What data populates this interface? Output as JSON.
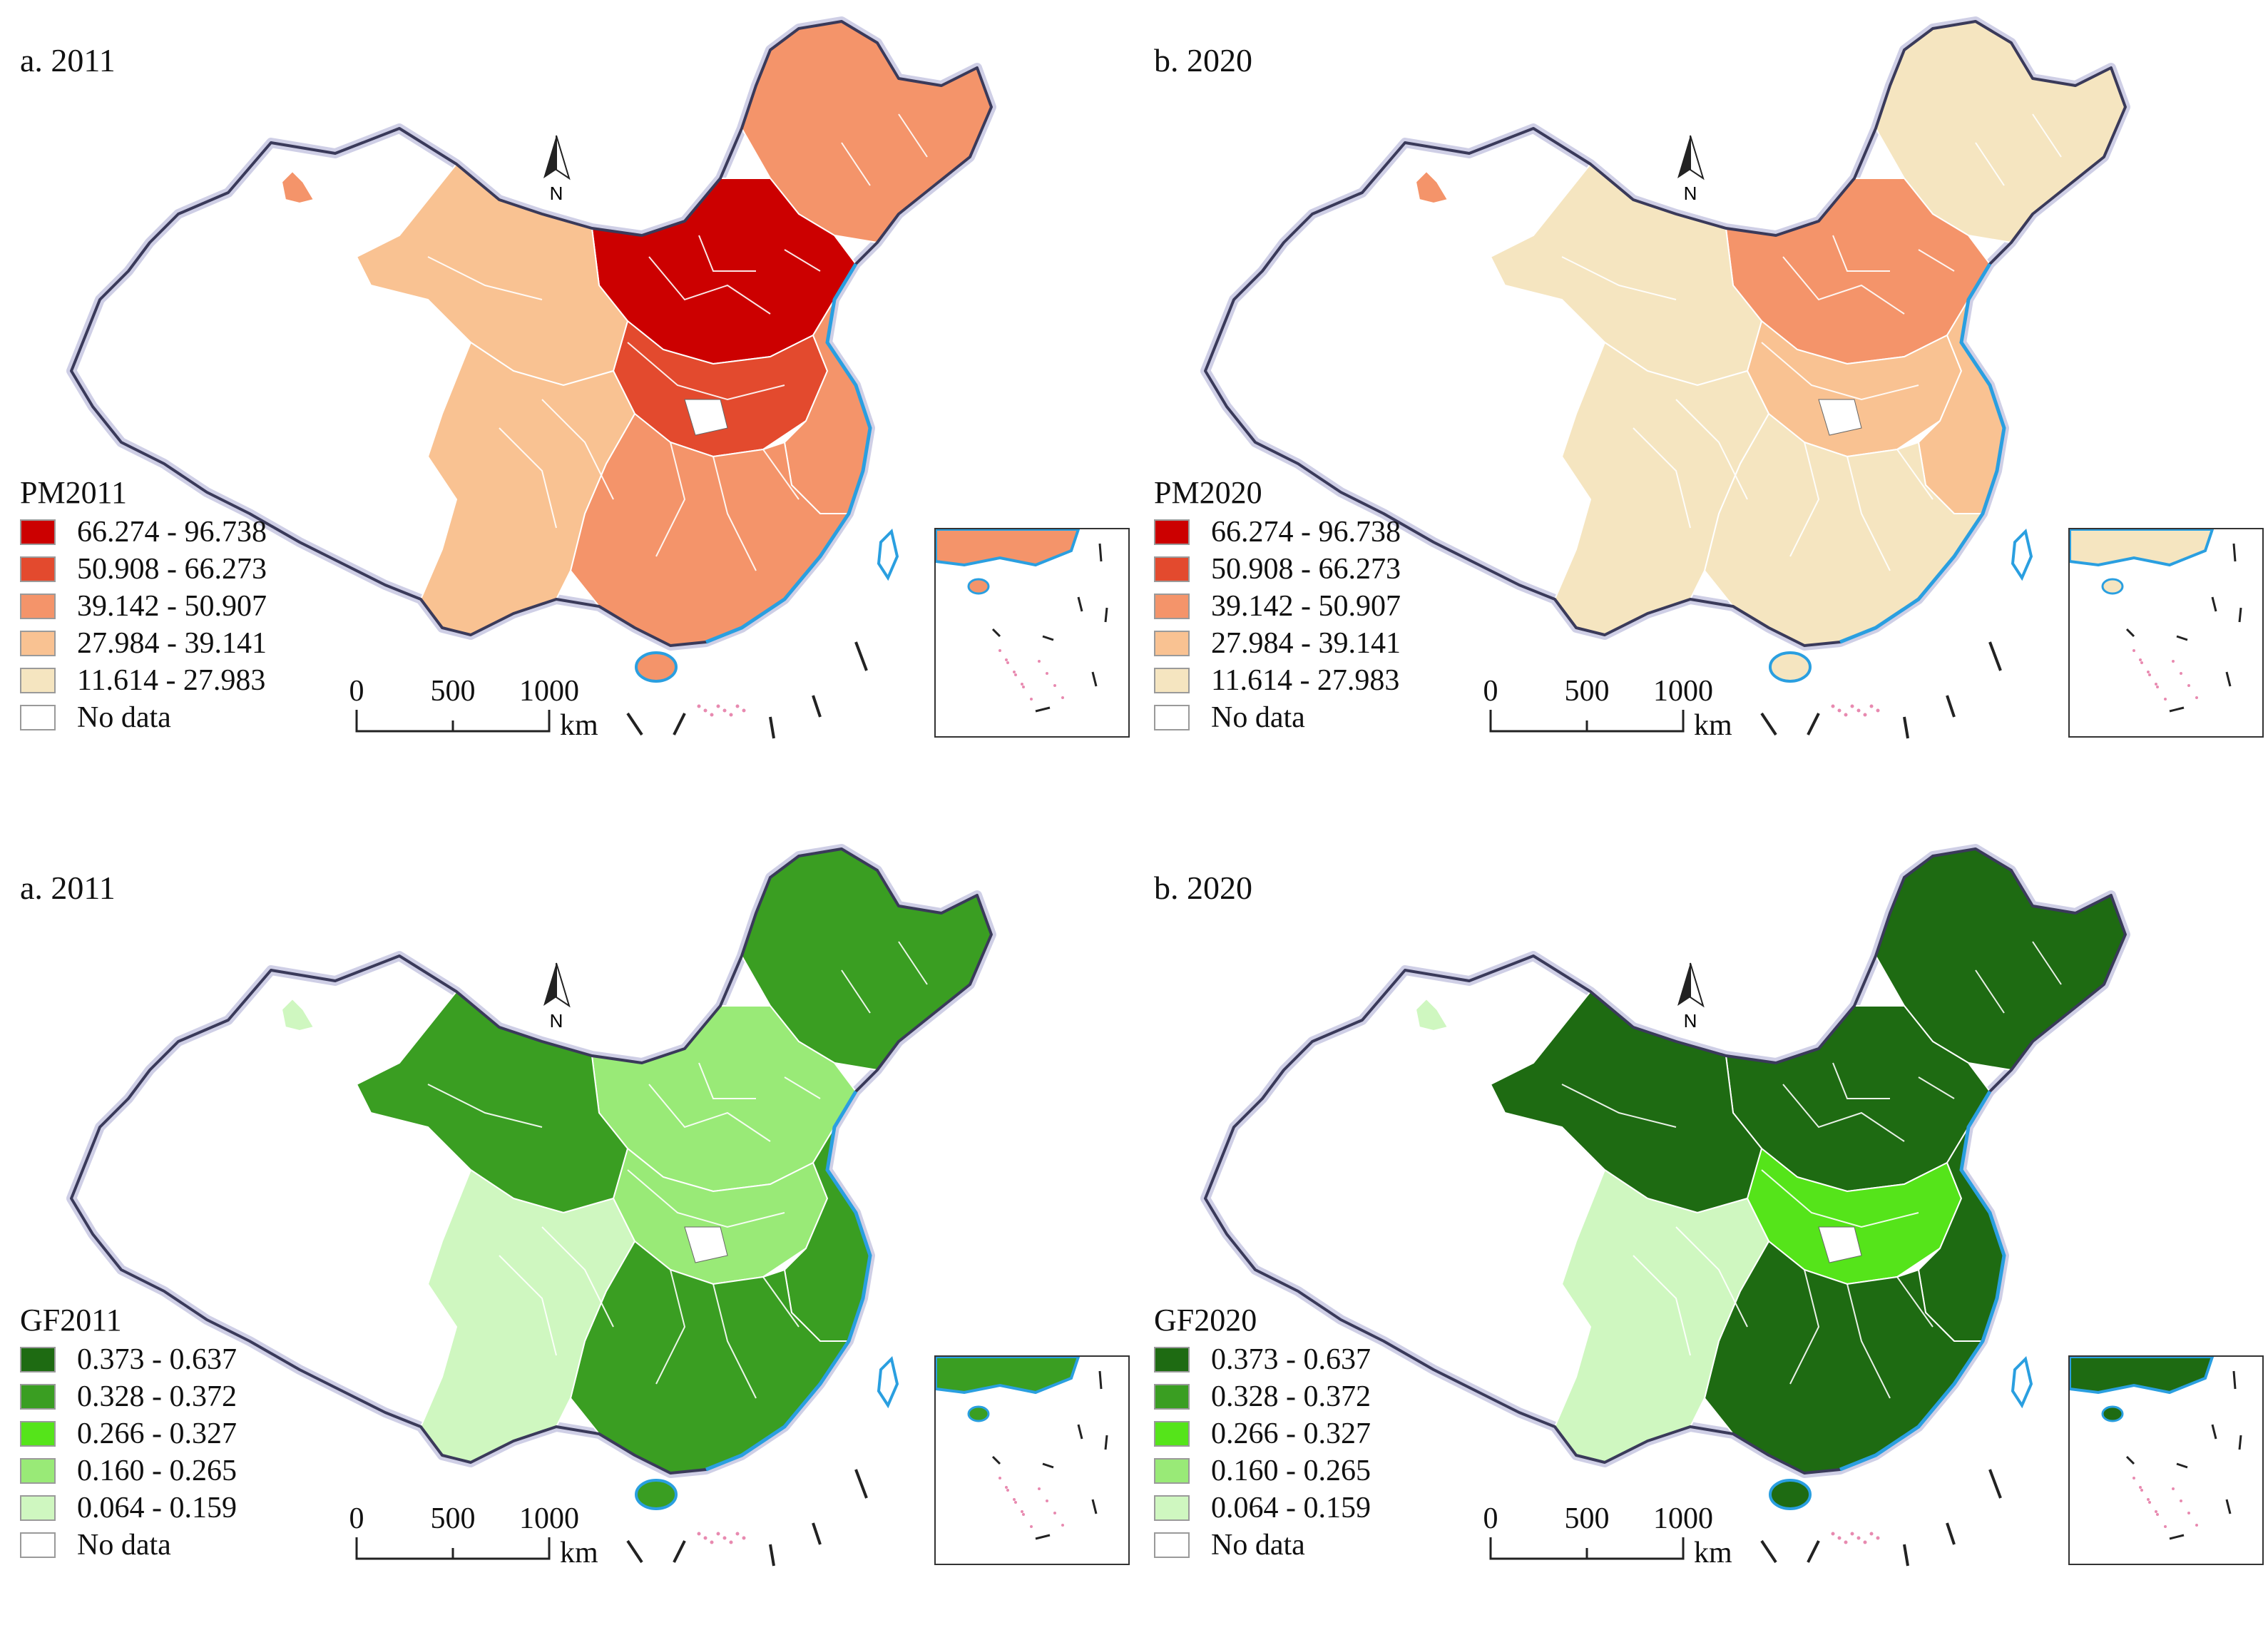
{
  "panels": [
    {
      "title": "a. 2011",
      "legend": {
        "title": "PM2011",
        "items": [
          {
            "label": "66.274 - 96.738",
            "color": "#cc0000"
          },
          {
            "label": "50.908 - 66.273",
            "color": "#e34a2e"
          },
          {
            "label": "39.142 - 50.907",
            "color": "#f4946a"
          },
          {
            "label": "27.984 - 39.141",
            "color": "#f9c292"
          },
          {
            "label": "11.614 - 27.983",
            "color": "#f5e5c0"
          },
          {
            "label": "No data",
            "color": "#ffffff"
          }
        ]
      },
      "scale": {
        "ticks": [
          "0",
          "500",
          "1000"
        ],
        "unit": "km"
      },
      "north": "N",
      "fill_by_region": {
        "northeast": 2,
        "north": 0,
        "central": 1,
        "west": 3,
        "south": 2,
        "southwest": 3,
        "east": 2,
        "xinjiang_spot": 2
      }
    },
    {
      "title": "b. 2020",
      "legend": {
        "title": "PM2020",
        "items": [
          {
            "label": "66.274 - 96.738",
            "color": "#cc0000"
          },
          {
            "label": "50.908 - 66.273",
            "color": "#e34a2e"
          },
          {
            "label": "39.142 - 50.907",
            "color": "#f4946a"
          },
          {
            "label": "27.984 - 39.141",
            "color": "#f9c292"
          },
          {
            "label": "11.614 - 27.983",
            "color": "#f5e5c0"
          },
          {
            "label": "No data",
            "color": "#ffffff"
          }
        ]
      },
      "scale": {
        "ticks": [
          "0",
          "500",
          "1000"
        ],
        "unit": "km"
      },
      "north": "N",
      "fill_by_region": {
        "northeast": 4,
        "north": 2,
        "central": 3,
        "west": 4,
        "south": 4,
        "southwest": 4,
        "east": 3,
        "xinjiang_spot": 2
      }
    },
    {
      "title": "a. 2011",
      "legend": {
        "title": "GF2011",
        "items": [
          {
            "label": "0.373 - 0.637",
            "color": "#1e6b12"
          },
          {
            "label": "0.328 - 0.372",
            "color": "#3a9e22"
          },
          {
            "label": "0.266 - 0.327",
            "color": "#55e41a"
          },
          {
            "label": "0.160 - 0.265",
            "color": "#99ea77"
          },
          {
            "label": "0.064 - 0.159",
            "color": "#cff7c0"
          },
          {
            "label": "No data",
            "color": "#ffffff"
          }
        ]
      },
      "scale": {
        "ticks": [
          "0",
          "500",
          "1000"
        ],
        "unit": "km"
      },
      "north": "N",
      "fill_by_region": {
        "northeast": 1,
        "north": 3,
        "central": 3,
        "west": 1,
        "south": 1,
        "southwest": 4,
        "east": 1,
        "xinjiang_spot": 4
      }
    },
    {
      "title": "b. 2020",
      "legend": {
        "title": "GF2020",
        "items": [
          {
            "label": "0.373 - 0.637",
            "color": "#1e6b12"
          },
          {
            "label": "0.328 - 0.372",
            "color": "#3a9e22"
          },
          {
            "label": "0.266 - 0.327",
            "color": "#55e41a"
          },
          {
            "label": "0.160 - 0.265",
            "color": "#99ea77"
          },
          {
            "label": "0.064 - 0.159",
            "color": "#cff7c0"
          },
          {
            "label": "No data",
            "color": "#ffffff"
          }
        ]
      },
      "scale": {
        "ticks": [
          "0",
          "500",
          "1000"
        ],
        "unit": "km"
      },
      "north": "N",
      "fill_by_region": {
        "northeast": 0,
        "north": 0,
        "central": 2,
        "west": 0,
        "south": 0,
        "southwest": 4,
        "east": 0,
        "xinjiang_spot": 4
      }
    }
  ]
}
